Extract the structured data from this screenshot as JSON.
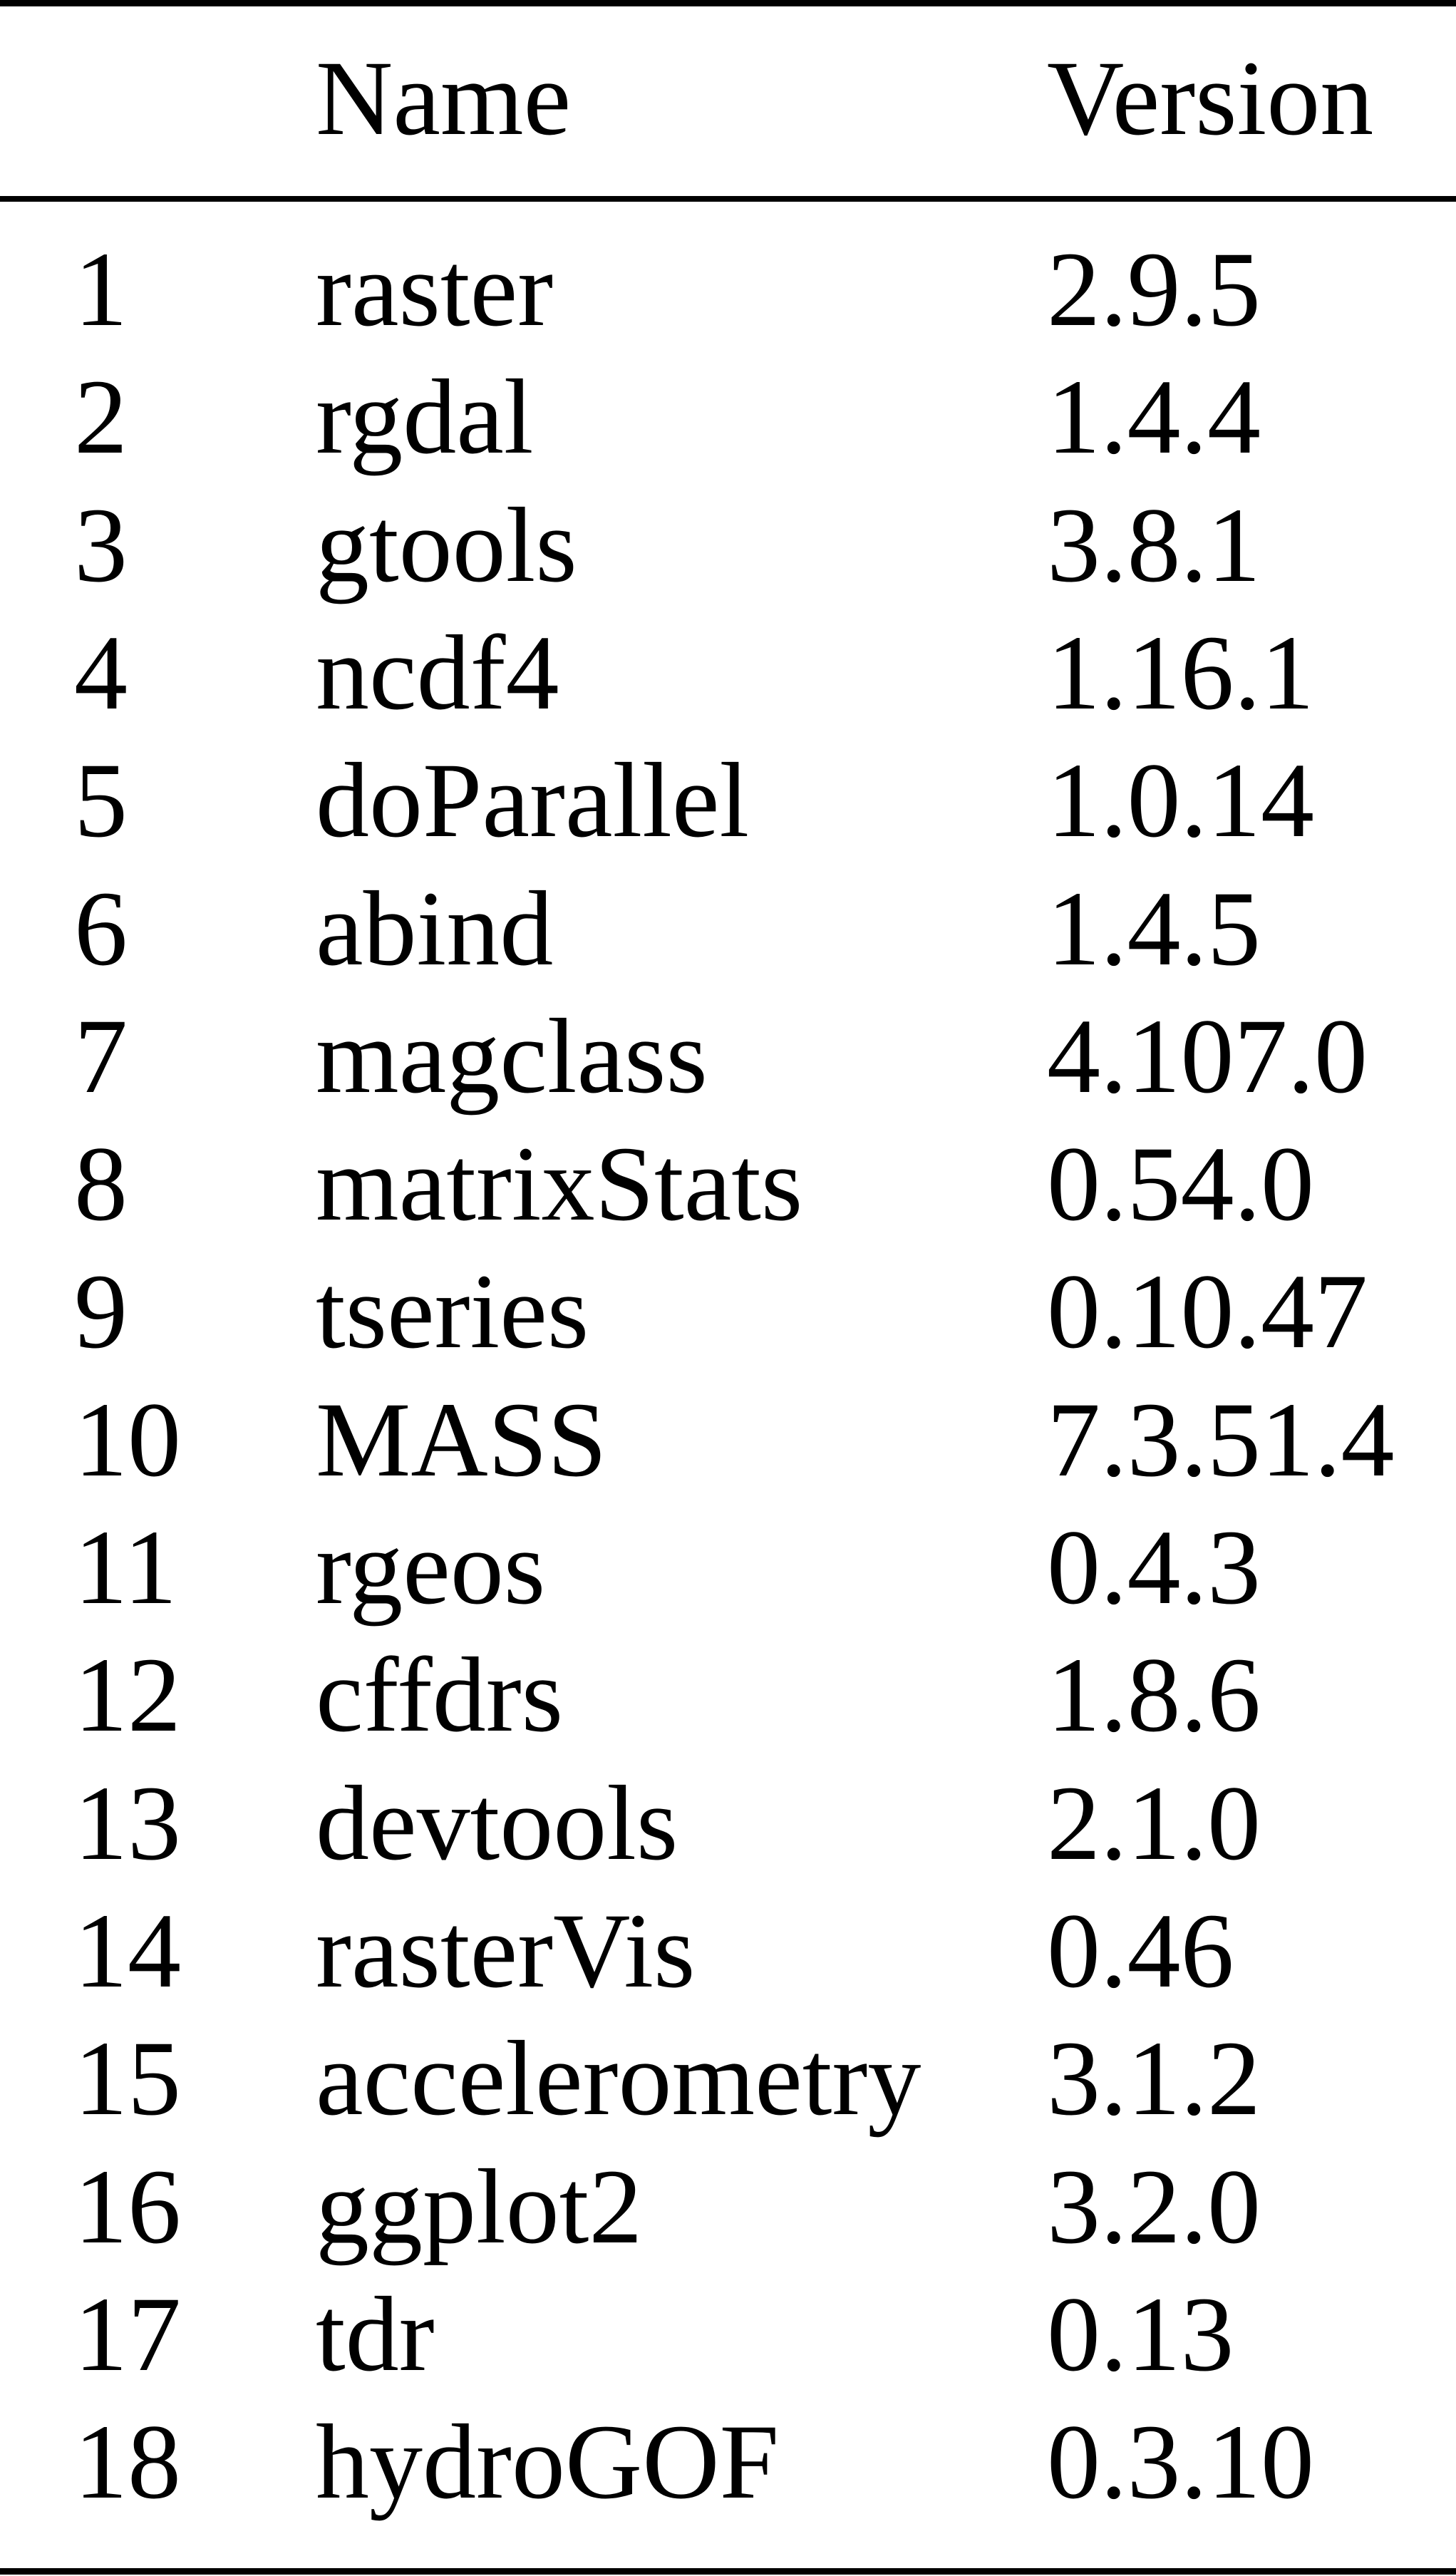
{
  "table": {
    "headers": [
      "",
      "Name",
      "Version"
    ],
    "rows": [
      [
        "1",
        "raster",
        "2.9.5"
      ],
      [
        "2",
        "rgdal",
        "1.4.4"
      ],
      [
        "3",
        "gtools",
        "3.8.1"
      ],
      [
        "4",
        "ncdf4",
        "1.16.1"
      ],
      [
        "5",
        "doParallel",
        "1.0.14"
      ],
      [
        "6",
        "abind",
        "1.4.5"
      ],
      [
        "7",
        "magclass",
        "4.107.0"
      ],
      [
        "8",
        "matrixStats",
        "0.54.0"
      ],
      [
        "9",
        "tseries",
        "0.10.47"
      ],
      [
        "10",
        "MASS",
        "7.3.51.4"
      ],
      [
        "11",
        "rgeos",
        "0.4.3"
      ],
      [
        "12",
        "cffdrs",
        "1.8.6"
      ],
      [
        "13",
        "devtools",
        "2.1.0"
      ],
      [
        "14",
        "rasterVis",
        "0.46"
      ],
      [
        "15",
        "accelerometry",
        "3.1.2"
      ],
      [
        "16",
        "ggplot2",
        "3.2.0"
      ],
      [
        "17",
        "tdr",
        "0.13"
      ],
      [
        "18",
        "hydroGOF",
        "0.3.10"
      ]
    ]
  }
}
